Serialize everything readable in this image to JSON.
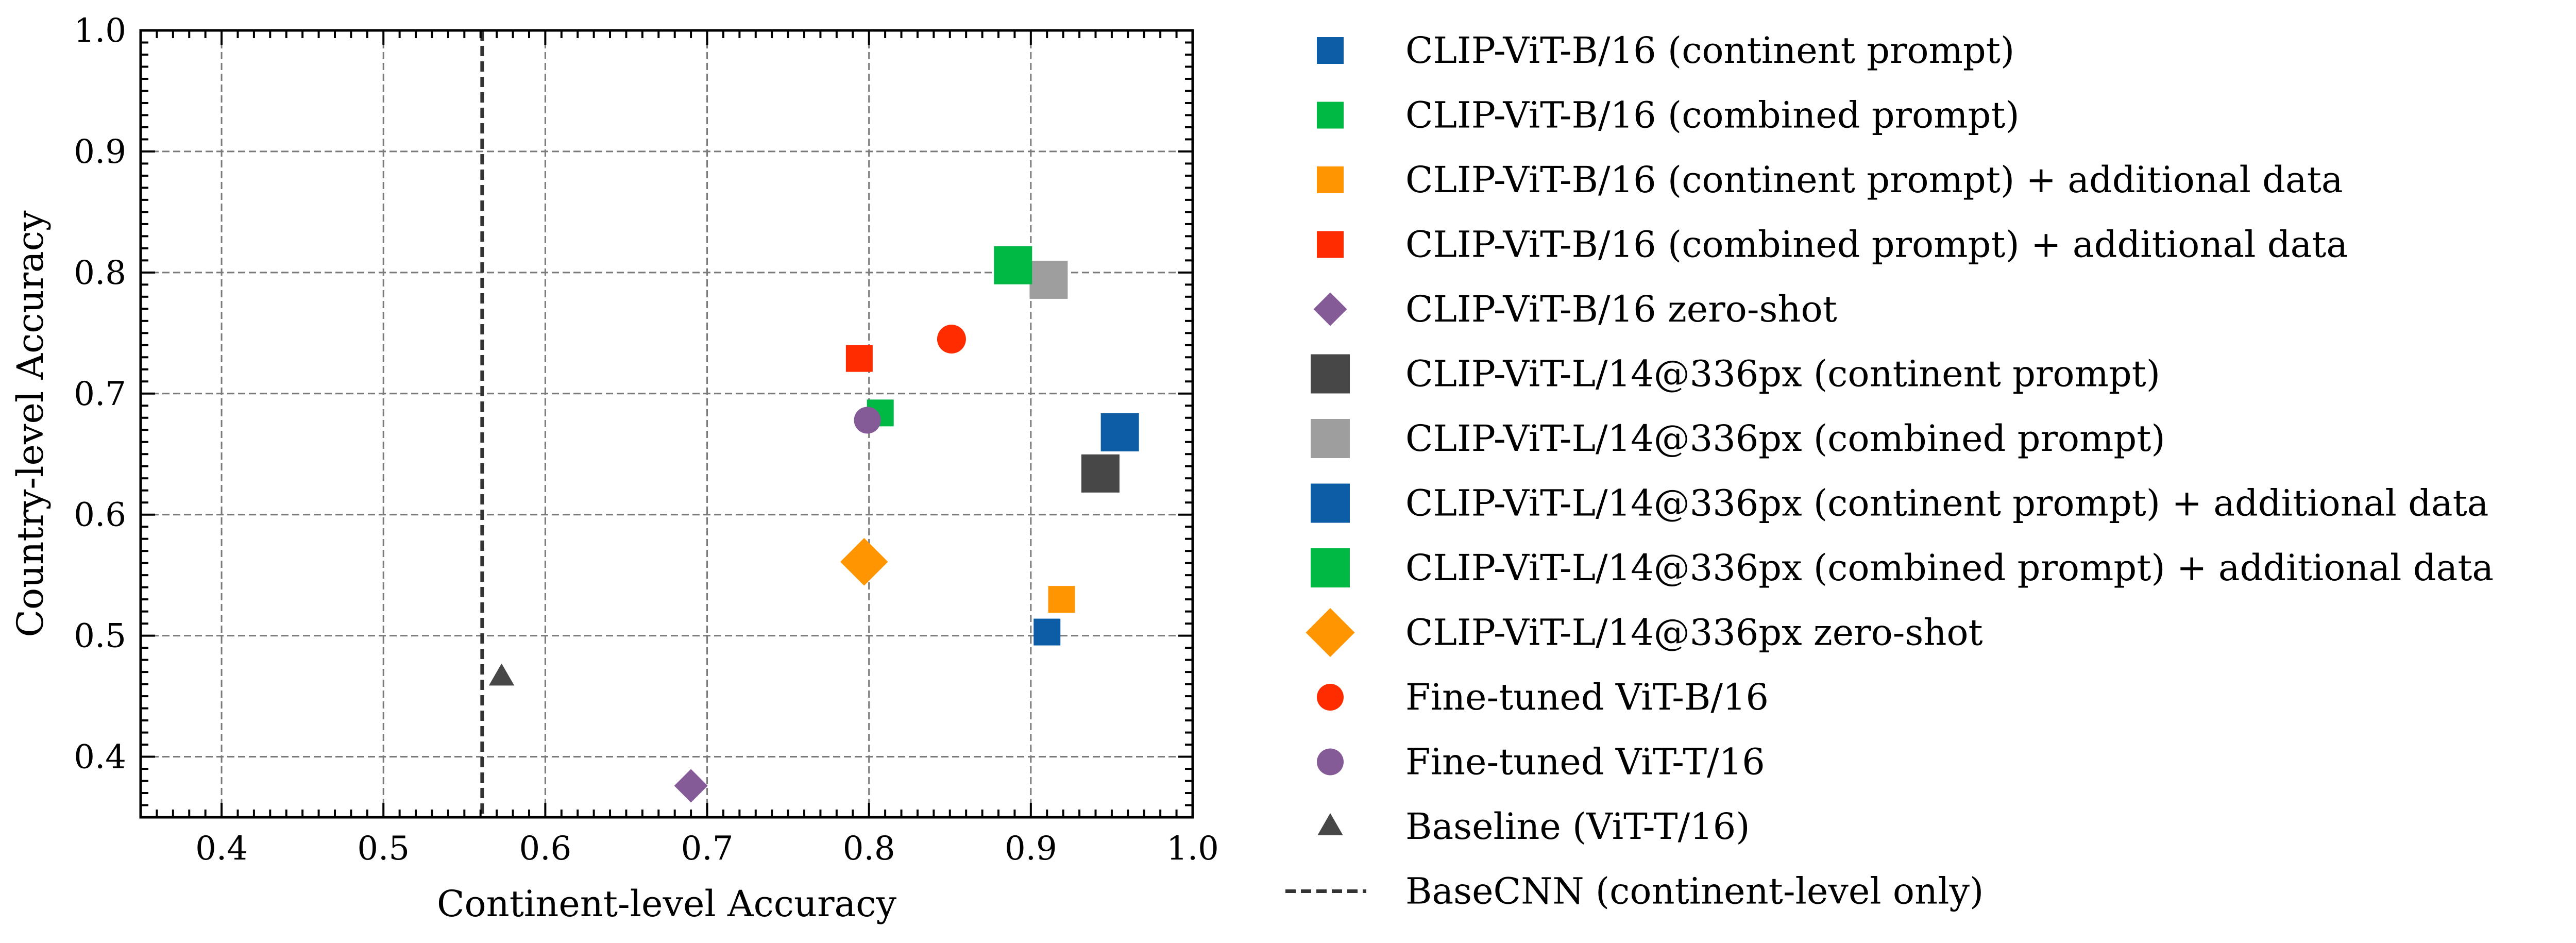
{
  "chart_data": {
    "type": "scatter",
    "title": "",
    "xlabel": "Continent-level Accuracy",
    "ylabel": "Country-level Accuracy",
    "xlim": [
      0.35,
      1.0
    ],
    "ylim": [
      0.35,
      1.0
    ],
    "xticks": [
      0.4,
      0.5,
      0.6,
      0.7,
      0.8,
      0.9,
      1.0
    ],
    "yticks": [
      0.4,
      0.5,
      0.6,
      0.7,
      0.8,
      0.9,
      1.0
    ],
    "xtick_labels": [
      "0.4",
      "0.5",
      "0.6",
      "0.7",
      "0.8",
      "0.9",
      "1.0"
    ],
    "ytick_labels": [
      "0.4",
      "0.5",
      "0.6",
      "0.7",
      "0.8",
      "0.9",
      "1.0"
    ],
    "grid": true,
    "legend_position": "right, outside plot",
    "series": [
      {
        "name": "CLIP-ViT-B/16 (continent prompt)",
        "marker": "square",
        "size": "small",
        "color": "#0C5DA5",
        "x": 0.91,
        "y": 0.503
      },
      {
        "name": "CLIP-ViT-B/16 (combined prompt)",
        "marker": "square",
        "size": "small",
        "color": "#00B945",
        "x": 0.807,
        "y": 0.684
      },
      {
        "name": "CLIP-ViT-B/16 (continent prompt) + additional data",
        "marker": "square",
        "size": "small",
        "color": "#FF9500",
        "x": 0.919,
        "y": 0.53
      },
      {
        "name": "CLIP-ViT-B/16 (combined prompt) + additional data",
        "marker": "square",
        "size": "small",
        "color": "#FF2C00",
        "x": 0.794,
        "y": 0.729
      },
      {
        "name": "CLIP-ViT-B/16 zero-shot",
        "marker": "diamond",
        "size": "small",
        "color": "#845B97",
        "x": 0.69,
        "y": 0.376
      },
      {
        "name": "CLIP-ViT-L/14@336px (continent prompt)",
        "marker": "square",
        "size": "large",
        "color": "#474747",
        "x": 0.943,
        "y": 0.634
      },
      {
        "name": "CLIP-ViT-L/14@336px (combined prompt)",
        "marker": "square",
        "size": "large",
        "color": "#9E9E9E",
        "x": 0.911,
        "y": 0.794
      },
      {
        "name": "CLIP-ViT-L/14@336px (continent prompt) + additional data",
        "marker": "square",
        "size": "large",
        "color": "#0C5DA5",
        "x": 0.955,
        "y": 0.668
      },
      {
        "name": "CLIP-ViT-L/14@336px (combined prompt) + additional data",
        "marker": "square",
        "size": "large",
        "color": "#00B945",
        "x": 0.889,
        "y": 0.806
      },
      {
        "name": "CLIP-ViT-L/14@336px zero-shot",
        "marker": "diamond",
        "size": "large",
        "color": "#FF9500",
        "x": 0.797,
        "y": 0.561
      },
      {
        "name": "Fine-tuned ViT-B/16",
        "marker": "circle",
        "size": "medium",
        "color": "#FF2C00",
        "x": 0.851,
        "y": 0.745
      },
      {
        "name": "Fine-tuned ViT-T/16",
        "marker": "circle",
        "size": "small",
        "color": "#845B97",
        "x": 0.799,
        "y": 0.678
      },
      {
        "name": "Baseline (ViT-T/16)",
        "marker": "triangle",
        "size": "small",
        "color": "#474747",
        "x": 0.573,
        "y": 0.466
      }
    ],
    "reference_lines": [
      {
        "name": "BaseCNN (continent-level only)",
        "orientation": "vertical",
        "style": "dashed",
        "color": "#333333",
        "x": 0.561
      }
    ]
  }
}
